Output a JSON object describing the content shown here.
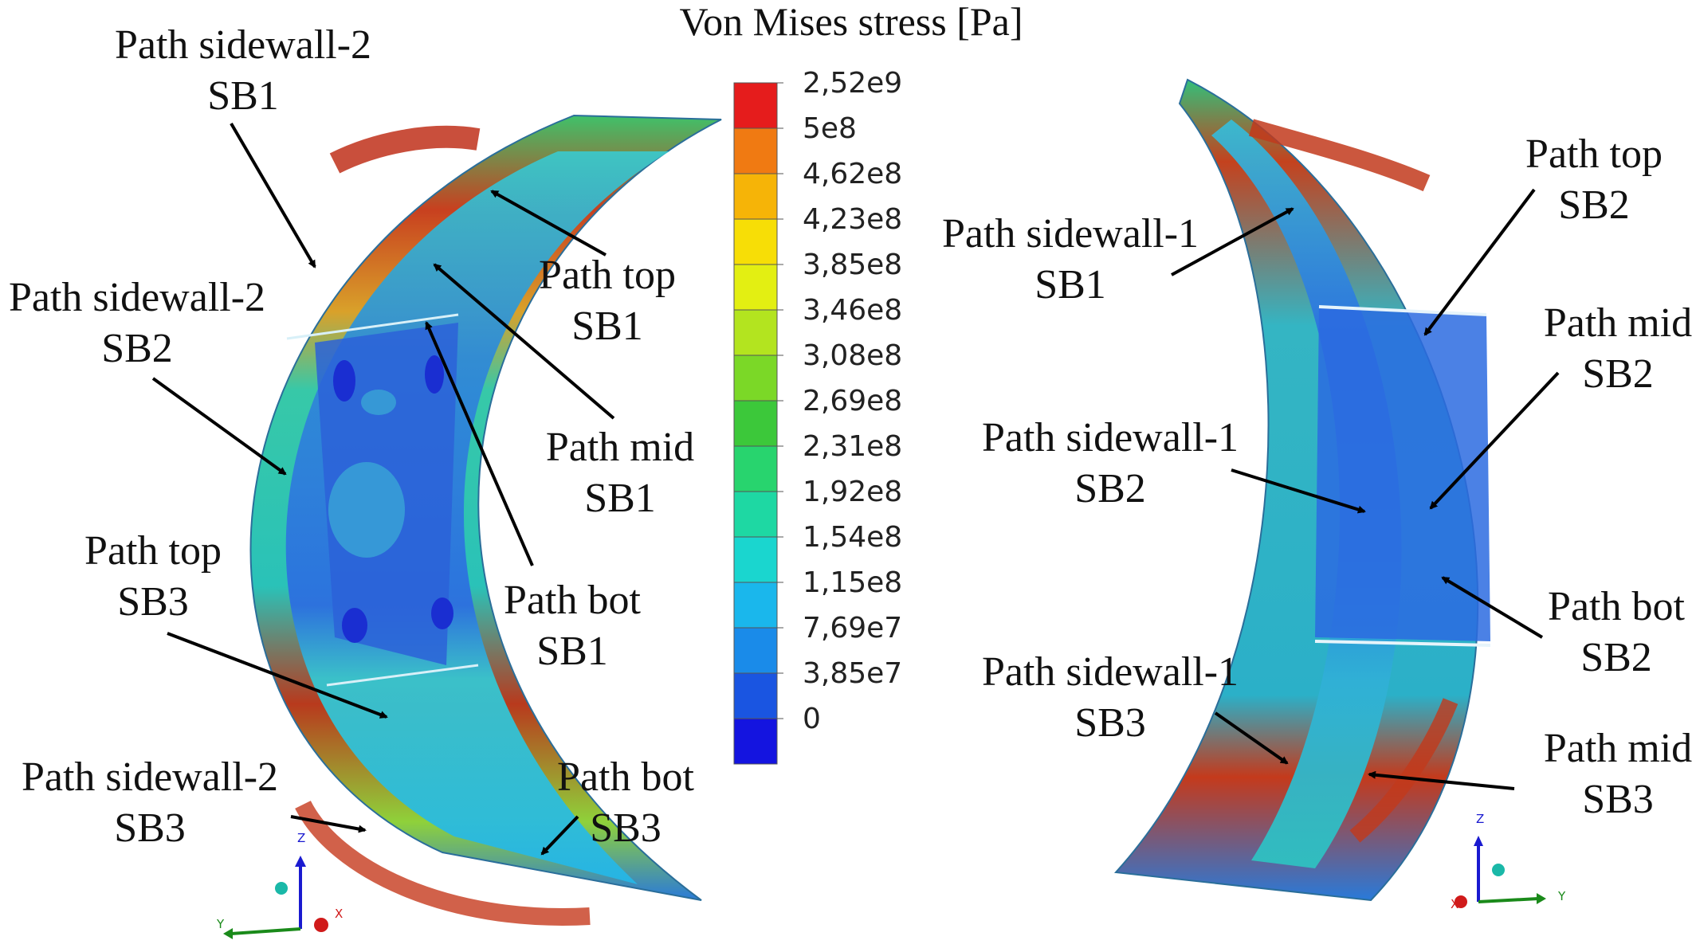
{
  "title": "Von Mises stress [Pa]",
  "legend": {
    "ticks": [
      "2,52e9",
      "5e8",
      "4,62e8",
      "4,23e8",
      "3,85e8",
      "3,46e8",
      "3,08e8",
      "2,69e8",
      "2,31e8",
      "1,92e8",
      "1,54e8",
      "1,15e8",
      "7,69e7",
      "3,85e7",
      "0"
    ],
    "colors": [
      "#e51c1c",
      "#f07a12",
      "#f6b407",
      "#f7de06",
      "#e3ef12",
      "#b3e41f",
      "#7bd827",
      "#3cc83a",
      "#28d46e",
      "#1ed8a3",
      "#1ad6cf",
      "#1ab7ec",
      "#1a8be9",
      "#1a55e1",
      "#1414e0"
    ]
  },
  "left_labels": [
    {
      "line1": "Path sidewall-2",
      "line2": "SB1"
    },
    {
      "line1": "Path top",
      "line2": "SB1"
    },
    {
      "line1": "Path sidewall-2",
      "line2": "SB2"
    },
    {
      "line1": "Path mid",
      "line2": "SB1"
    },
    {
      "line1": "Path bot",
      "line2": "SB1"
    },
    {
      "line1": "Path top",
      "line2": "SB3"
    },
    {
      "line1": "Path sidewall-2",
      "line2": "SB3"
    },
    {
      "line1": "Path bot",
      "line2": "SB3"
    }
  ],
  "right_labels": [
    {
      "line1": "Path top",
      "line2": "SB2"
    },
    {
      "line1": "Path sidewall-1",
      "line2": "SB1"
    },
    {
      "line1": "Path mid",
      "line2": "SB2"
    },
    {
      "line1": "Path sidewall-1",
      "line2": "SB2"
    },
    {
      "line1": "Path bot",
      "line2": "SB2"
    },
    {
      "line1": "Path sidewall-1",
      "line2": "SB3"
    },
    {
      "line1": "Path mid",
      "line2": "SB3"
    }
  ],
  "triad_left": {
    "z": "Z",
    "y": "Y",
    "x": "X"
  },
  "triad_right": {
    "z": "Z",
    "y": "Y",
    "x": "X"
  }
}
